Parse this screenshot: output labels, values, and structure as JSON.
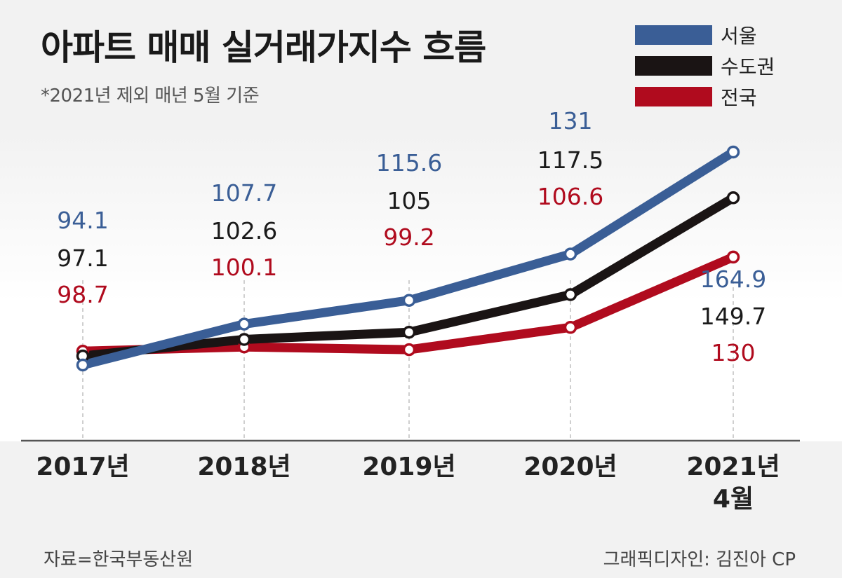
{
  "header": {
    "title": "아파트 매매 실거래가지수 흐름",
    "subtitle": "*2021년 제외 매년 5월 기준"
  },
  "footer": {
    "source": "자료=한국부동산원",
    "credit": "그래픽디자인: 김진아 CP"
  },
  "colors": {
    "seoul": "#3a5e96",
    "metro": "#1a1414",
    "national": "#b00b1e",
    "label_black": "#1a1a1a"
  },
  "chart_data": {
    "type": "line",
    "title": "아파트 매매 실거래가지수 흐름",
    "categories": [
      "2017년",
      "2018년",
      "2019년",
      "2020년",
      "2021년\n4월"
    ],
    "series": [
      {
        "name": "서울",
        "values": [
          94.1,
          107.7,
          115.6,
          131,
          164.9
        ]
      },
      {
        "name": "수도권",
        "values": [
          97.1,
          102.6,
          105,
          117.5,
          149.7
        ]
      },
      {
        "name": "전국",
        "values": [
          98.7,
          100.1,
          99.2,
          106.6,
          130
        ]
      }
    ],
    "xlabel": "",
    "ylabel": "",
    "ylim": [
      70,
      175
    ],
    "grid": false,
    "legend": "top-right"
  }
}
